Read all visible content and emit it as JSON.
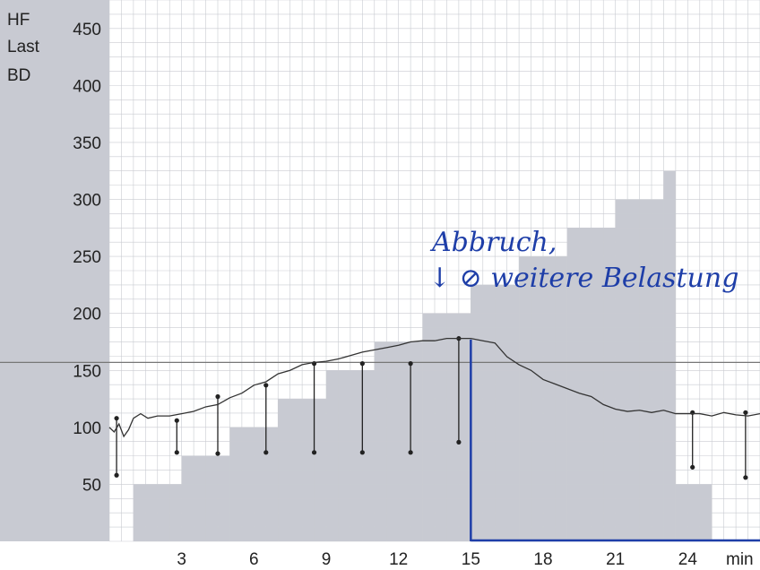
{
  "chart_data": {
    "type": "line",
    "y_labels": [
      "HF",
      "Last",
      "BD"
    ],
    "xlabel": "min",
    "xlim": [
      0,
      27
    ],
    "ylim": [
      0,
      475
    ],
    "x_ticks": [
      3,
      6,
      9,
      12,
      15,
      18,
      21,
      24
    ],
    "y_ticks": [
      50,
      100,
      150,
      200,
      250,
      300,
      350,
      400,
      450
    ],
    "grid": true,
    "colors": {
      "background": "#ffffff",
      "grid": "#c9cbd1",
      "load_fill": "#c8cad2",
      "hr_line": "#333333",
      "bp_marker": "#222222",
      "annotation": "#1e3ea8",
      "reference_line": "#777777"
    },
    "reference_line": 157,
    "load_steps": [
      {
        "x_start": 0,
        "x_end": 1,
        "value": 0
      },
      {
        "x_start": 1,
        "x_end": 3,
        "value": 50
      },
      {
        "x_start": 3,
        "x_end": 5,
        "value": 75
      },
      {
        "x_start": 5,
        "x_end": 7,
        "value": 100
      },
      {
        "x_start": 7,
        "x_end": 9,
        "value": 125
      },
      {
        "x_start": 9,
        "x_end": 11,
        "value": 150
      },
      {
        "x_start": 11,
        "x_end": 13,
        "value": 175
      },
      {
        "x_start": 13,
        "x_end": 15,
        "value": 200
      },
      {
        "x_start": 15,
        "x_end": 17,
        "value": 225
      },
      {
        "x_start": 17,
        "x_end": 19,
        "value": 250
      },
      {
        "x_start": 19,
        "x_end": 21,
        "value": 275
      },
      {
        "x_start": 21,
        "x_end": 23,
        "value": 300
      },
      {
        "x_start": 23,
        "x_end": 23.5,
        "value": 325
      },
      {
        "x_start": 23.5,
        "x_end": 25,
        "value": 50
      },
      {
        "x_start": 25,
        "x_end": 27,
        "value": 0
      }
    ],
    "series": [
      {
        "x": [
          0,
          0.2,
          0.4,
          0.6,
          0.8,
          1.0,
          1.3,
          1.6,
          2.0,
          2.5,
          3.0,
          3.5,
          4.0,
          4.5,
          5.0,
          5.5,
          6.0,
          6.5,
          7.0,
          7.5,
          8.0,
          8.5,
          9.0,
          9.5,
          10.0,
          10.5,
          11.0,
          11.5,
          12.0,
          12.5,
          13.0,
          13.5,
          14.0,
          14.5,
          15.0,
          15.5,
          16.0,
          16.5,
          17.0,
          17.5,
          18.0,
          18.5,
          19.0,
          19.5,
          20.0,
          20.5,
          21.0,
          21.5,
          22.0,
          22.5,
          23.0,
          23.5,
          24.0,
          24.5,
          25.0,
          25.5,
          26.0,
          26.5,
          27.0
        ],
        "values": [
          100,
          96,
          103,
          92,
          98,
          108,
          112,
          108,
          110,
          110,
          112,
          114,
          118,
          120,
          126,
          130,
          137,
          140,
          147,
          150,
          155,
          157,
          158,
          160,
          163,
          166,
          168,
          170,
          172,
          175,
          176,
          176,
          178,
          178,
          178,
          176,
          174,
          162,
          155,
          150,
          142,
          138,
          134,
          130,
          127,
          120,
          116,
          114,
          115,
          113,
          115,
          112,
          112,
          112,
          110,
          113,
          111,
          110,
          112
        ]
      }
    ],
    "bp_markers": [
      {
        "x": 0.3,
        "systolic": 108,
        "diastolic": 58
      },
      {
        "x": 2.8,
        "systolic": 106,
        "diastolic": 78
      },
      {
        "x": 4.5,
        "systolic": 127,
        "diastolic": 77
      },
      {
        "x": 6.5,
        "systolic": 137,
        "diastolic": 78
      },
      {
        "x": 8.5,
        "systolic": 156,
        "diastolic": 78
      },
      {
        "x": 10.5,
        "systolic": 156,
        "diastolic": 78
      },
      {
        "x": 12.5,
        "systolic": 156,
        "diastolic": 78
      },
      {
        "x": 14.5,
        "systolic": 178,
        "diastolic": 87
      },
      {
        "x": 24.2,
        "systolic": 113,
        "diastolic": 65
      },
      {
        "x": 26.4,
        "systolic": 113,
        "diastolic": 56
      }
    ],
    "annotation": {
      "lines": [
        "Abbruch,",
        "↓ ⊘ weitere Belastung"
      ],
      "event_x": 15,
      "underline_y": 0
    }
  }
}
